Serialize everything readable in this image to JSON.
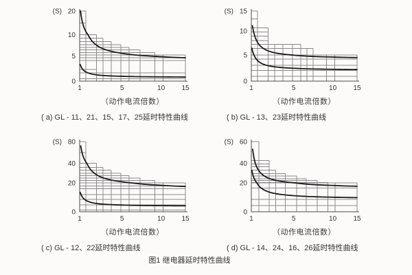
{
  "page": {
    "background": "#fdfafa",
    "figure_caption": "图1 继电器延时特性曲线",
    "colors": {
      "grid": "#8a8a8a",
      "axis": "#4a4a4a",
      "curve": "#1a1a1a",
      "text": "#333333"
    }
  },
  "chart_data": [
    {
      "id": "a",
      "type": "line",
      "caption": "( a) GL - 11、21、15、17、25延时特性曲线",
      "xlabel": "（动作电流倍数）",
      "ylabel": "(S)",
      "x_ticks": [
        1,
        5,
        10,
        15
      ],
      "y_ticks": [
        0,
        5,
        10,
        20
      ],
      "x_range": [
        1,
        15
      ],
      "y_range": [
        0,
        20
      ],
      "x_stops": [
        [
          1,
          0
        ],
        [
          5,
          0.4
        ],
        [
          10,
          0.77
        ],
        [
          15,
          1.0
        ]
      ],
      "y_stops": [
        [
          0,
          0
        ],
        [
          5,
          0.36
        ],
        [
          10,
          0.66
        ],
        [
          20,
          1.0
        ]
      ],
      "levels": [
        [
          20,
          1.6
        ],
        [
          15,
          1.6
        ],
        [
          10,
          2.6
        ],
        [
          9.2,
          3.2
        ],
        [
          8.4,
          4.0
        ],
        [
          7.7,
          4.9
        ],
        [
          7.0,
          5.9
        ],
        [
          6.4,
          7.3
        ],
        [
          5.8,
          9.2
        ],
        [
          5.2,
          15
        ],
        [
          4.6,
          15
        ],
        [
          4.1,
          15
        ],
        [
          2.3,
          2.6
        ],
        [
          1.6,
          15
        ],
        [
          0.5,
          15
        ]
      ],
      "verticals": [
        [
          1.6,
          20
        ],
        [
          2.6,
          10
        ],
        [
          3.2,
          9.2
        ],
        [
          4.0,
          8.4
        ],
        [
          4.9,
          7.7
        ],
        [
          5.9,
          7.0
        ],
        [
          7.3,
          6.4
        ],
        [
          9.2,
          5.8
        ],
        [
          10.4,
          5.2
        ],
        [
          15,
          5.2
        ]
      ],
      "curves": [
        {
          "name": "upper",
          "x_start": 1.08,
          "y_start": 20,
          "y_asymptote": 4.25
        },
        {
          "name": "lower",
          "x_start": 1.05,
          "y_start": 3.3,
          "y_asymptote": 0.75
        }
      ]
    },
    {
      "id": "b",
      "type": "line",
      "caption": "( b) GL - 13、23延时特性曲线",
      "xlabel": "（动作电流倍数）",
      "ylabel": "(S)",
      "x_ticks": [
        1,
        5,
        10,
        15
      ],
      "y_ticks": [
        0,
        5,
        10,
        15
      ],
      "x_range": [
        1,
        15
      ],
      "y_range": [
        0,
        15
      ],
      "x_stops": [
        [
          1,
          0
        ],
        [
          5,
          0.4
        ],
        [
          10,
          0.77
        ],
        [
          15,
          1.0
        ]
      ],
      "y_stops": [
        [
          0,
          0
        ],
        [
          5,
          0.375
        ],
        [
          10,
          0.715
        ],
        [
          15,
          1.0
        ]
      ],
      "levels": [
        [
          15,
          1.6
        ],
        [
          13,
          1.6
        ],
        [
          10.8,
          2.6
        ],
        [
          9.8,
          2.6
        ],
        [
          8.9,
          2.6
        ],
        [
          8.0,
          2.6
        ],
        [
          7.2,
          5.9
        ],
        [
          6.3,
          7.5
        ],
        [
          5.0,
          15
        ],
        [
          4.2,
          15
        ],
        [
          3.0,
          15
        ],
        [
          2.0,
          15
        ],
        [
          0.9,
          15
        ]
      ],
      "verticals": [
        [
          1.6,
          15
        ],
        [
          2.6,
          10.8
        ],
        [
          3.2,
          7.2
        ],
        [
          4.0,
          7.2
        ],
        [
          4.9,
          7.2
        ],
        [
          5.9,
          7.2
        ],
        [
          6.7,
          6.3
        ],
        [
          7.5,
          6.3
        ],
        [
          9.2,
          5.0
        ],
        [
          10.4,
          5.0
        ],
        [
          15,
          5.0
        ]
      ],
      "curves": [
        {
          "name": "upper",
          "x_start": 1.1,
          "y_start": 11.3,
          "y_asymptote": 4.3
        },
        {
          "name": "lower",
          "x_start": 1.05,
          "y_start": 6.4,
          "y_asymptote": 2.1
        }
      ]
    },
    {
      "id": "c",
      "type": "line",
      "caption": "( c) GL - 12、22延时特性曲线",
      "xlabel": "（动作电流倍数）",
      "ylabel": "(S)",
      "x_ticks": [
        1,
        5,
        10,
        15
      ],
      "y_ticks": [
        0,
        20,
        40,
        80
      ],
      "x_range": [
        1,
        15
      ],
      "y_range": [
        0,
        80
      ],
      "x_stops": [
        [
          1,
          0
        ],
        [
          5,
          0.4
        ],
        [
          10,
          0.77
        ],
        [
          15,
          1.0
        ]
      ],
      "y_stops": [
        [
          0,
          0
        ],
        [
          20,
          0.41
        ],
        [
          40,
          0.69
        ],
        [
          80,
          1.0
        ]
      ],
      "levels": [
        [
          80,
          1.6
        ],
        [
          60,
          1.6
        ],
        [
          40,
          2.6
        ],
        [
          36,
          3.2
        ],
        [
          33,
          4.0
        ],
        [
          30,
          4.9
        ],
        [
          27.5,
          5.9
        ],
        [
          25,
          7.3
        ],
        [
          22.5,
          9.2
        ],
        [
          20,
          15
        ],
        [
          18,
          15
        ],
        [
          16,
          15
        ],
        [
          12,
          15
        ],
        [
          8.5,
          15
        ],
        [
          4.9,
          15
        ],
        [
          1.1,
          15
        ]
      ],
      "verticals": [
        [
          1.6,
          80
        ],
        [
          2.6,
          40
        ],
        [
          3.2,
          36
        ],
        [
          4.0,
          33
        ],
        [
          4.9,
          30
        ],
        [
          5.9,
          27.5
        ],
        [
          7.3,
          25
        ],
        [
          9.2,
          22.5
        ],
        [
          10.4,
          20
        ],
        [
          15,
          20
        ]
      ],
      "curves": [
        {
          "name": "upper",
          "x_start": 1.1,
          "y_start": 72,
          "y_asymptote": 16.2
        },
        {
          "name": "lower",
          "x_start": 1.05,
          "y_start": 13.5,
          "y_asymptote": 3.9
        }
      ]
    },
    {
      "id": "d",
      "type": "line",
      "caption": "( d) GL - 14、24、16、26延时特性曲线",
      "xlabel": "（动作电流倍数）",
      "ylabel": "(S)",
      "x_ticks": [
        1,
        5,
        10,
        15
      ],
      "y_ticks": [
        0,
        20,
        40,
        60
      ],
      "x_range": [
        1,
        15
      ],
      "y_range": [
        0,
        60
      ],
      "x_stops": [
        [
          1,
          0
        ],
        [
          5,
          0.4
        ],
        [
          10,
          0.77
        ],
        [
          15,
          1.0
        ]
      ],
      "y_stops": [
        [
          0,
          0
        ],
        [
          20,
          0.41
        ],
        [
          40,
          0.69
        ],
        [
          60,
          1.0
        ]
      ],
      "levels": [
        [
          60,
          1.7
        ],
        [
          42.5,
          2.7
        ],
        [
          39.5,
          2.7
        ],
        [
          36.5,
          2.7
        ],
        [
          33,
          3.3
        ],
        [
          29.5,
          4.2
        ],
        [
          27,
          5.4
        ],
        [
          24.5,
          6.6
        ],
        [
          22.5,
          8.0
        ],
        [
          20.5,
          9.4
        ],
        [
          20,
          15
        ],
        [
          16.5,
          15
        ],
        [
          8.5,
          15
        ],
        [
          4.4,
          15
        ]
      ],
      "verticals": [
        [
          1.7,
          60
        ],
        [
          2.7,
          42.5
        ],
        [
          3.3,
          33
        ],
        [
          4.2,
          29.5
        ],
        [
          5.4,
          27
        ],
        [
          6.6,
          24.5
        ],
        [
          8.0,
          22.5
        ],
        [
          9.4,
          20.5
        ],
        [
          10.5,
          20
        ],
        [
          15,
          20
        ]
      ],
      "curves": [
        {
          "name": "upper",
          "x_start": 1.12,
          "y_start": 53,
          "y_asymptote": 16.8
        },
        {
          "name": "lower",
          "x_start": 1.05,
          "y_start": 33,
          "y_asymptote": 9.3
        }
      ]
    }
  ]
}
